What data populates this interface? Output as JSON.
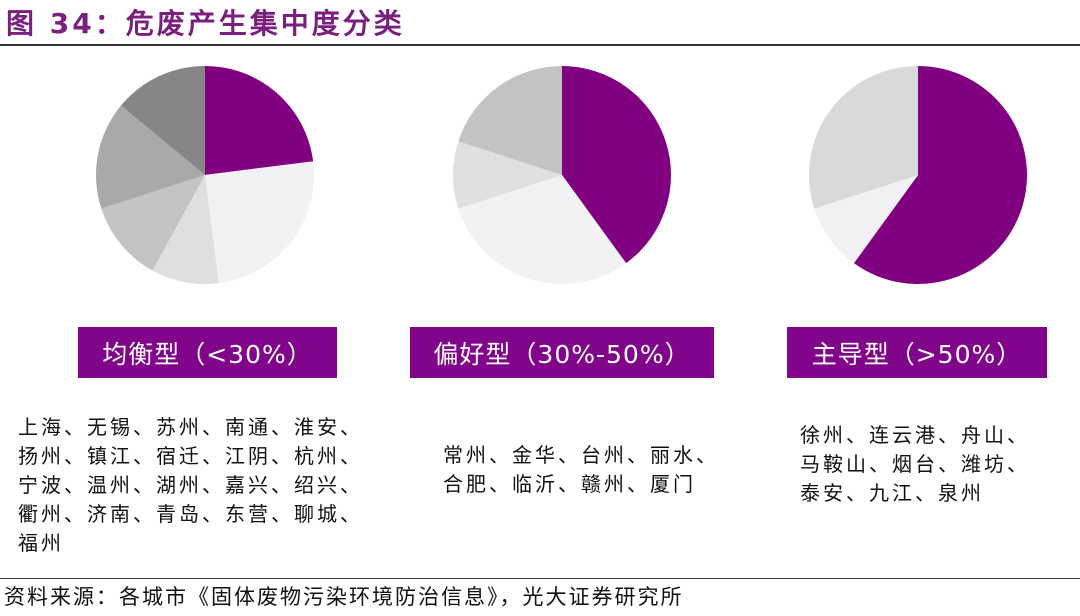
{
  "title": "图 34：危废产生集中度分类",
  "colors": {
    "accent": "#80058a",
    "title": "#7a1f7e"
  },
  "chart_data": [
    {
      "type": "pie",
      "label": "均衡型（<30%）",
      "values": [
        23,
        25,
        10,
        12,
        16,
        14
      ],
      "colors": [
        "#800080",
        "#f2f2f4",
        "#dfdfe1",
        "#c4c4c6",
        "#a9a9ab",
        "#868688"
      ]
    },
    {
      "type": "pie",
      "label": "偏好型（30%-50%）",
      "values": [
        40,
        30,
        10,
        20
      ],
      "colors": [
        "#800080",
        "#f2f2f4",
        "#e0e0e2",
        "#c3c3c5"
      ]
    },
    {
      "type": "pie",
      "label": "主导型（>50%）",
      "values": [
        60,
        10,
        30
      ],
      "colors": [
        "#800080",
        "#f1f1f3",
        "#d9d9db"
      ]
    }
  ],
  "groups": [
    {
      "label": "均衡型（<30%）",
      "city_lines": [
        "上海、无锡、苏州、南通、淮安、",
        "扬州、镇江、宿迁、江阴、杭州、",
        "宁波、温州、湖州、嘉兴、绍兴、",
        "衢州、济南、青岛、东营、聊城、",
        "福州"
      ]
    },
    {
      "label": "偏好型（30%-50%）",
      "city_lines": [
        "常州、金华、台州、丽水、",
        "合肥、临沂、赣州、厦门"
      ]
    },
    {
      "label": "主导型（>50%）",
      "city_lines": [
        "徐州、连云港、舟山、",
        "马鞍山、烟台、潍坊、",
        "泰安、九江、泉州"
      ]
    }
  ],
  "source": "资料来源：各城市《固体废物污染环境防治信息》，光大证券研究所"
}
